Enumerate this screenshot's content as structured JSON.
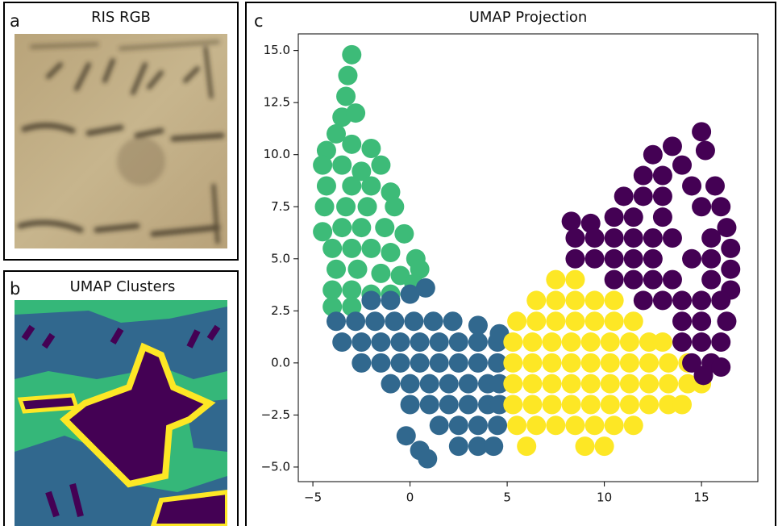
{
  "panels": [
    {
      "letter": "a",
      "title": "RIS RGB"
    },
    {
      "letter": "b",
      "title": "UMAP Clusters"
    }
  ],
  "chart_data": {
    "type": "scatter",
    "letter": "c",
    "title": "UMAP Projection",
    "xlim": [
      -5.75,
      17.9
    ],
    "ylim": [
      -5.7,
      15.8
    ],
    "xticks": [
      {
        "value": -5,
        "label": "−5"
      },
      0,
      5,
      10,
      15
    ],
    "yticks": [
      {
        "value": -5,
        "label": "−5.0"
      },
      {
        "value": -2.5,
        "label": "−2.5"
      },
      {
        "value": 0,
        "label": "0.0"
      },
      {
        "value": 2.5,
        "label": "2.5"
      },
      {
        "value": 5,
        "label": "5.0"
      },
      {
        "value": 7.5,
        "label": "7.5"
      },
      {
        "value": 10,
        "label": "10.0"
      },
      {
        "value": 12.5,
        "label": "12.5"
      },
      {
        "value": 15,
        "label": "15.0"
      }
    ],
    "series": [
      {
        "color": "#3dbb78",
        "x": [
          -3,
          -3.2,
          -3.3,
          -3.5,
          -2.8,
          -3.8,
          -4.3,
          -3,
          -2,
          -4.5,
          -3.5,
          -2.5,
          -1.5,
          -4.3,
          -3,
          -2,
          -1,
          -4.4,
          -3.3,
          -2.2,
          -0.8,
          -4.5,
          -3.5,
          -2.5,
          -1.3,
          -0.3,
          -4,
          -3,
          -2,
          -1,
          0.3,
          0.5,
          -3.8,
          -2.7,
          -1.5,
          -0.5,
          -4,
          -3,
          -2,
          -1,
          0.2,
          -4,
          -3
        ],
        "y": [
          14.8,
          13.8,
          12.8,
          11.8,
          12,
          11,
          10.2,
          10.5,
          10.3,
          9.5,
          9.5,
          9.2,
          9.5,
          8.5,
          8.5,
          8.5,
          8.2,
          7.5,
          7.5,
          7.5,
          7.5,
          6.3,
          6.5,
          6.5,
          6.5,
          6.2,
          5.5,
          5.5,
          5.5,
          5.3,
          5,
          4.5,
          4.5,
          4.5,
          4.3,
          4.2,
          3.5,
          3.5,
          3.3,
          3.3,
          3.8,
          2.7,
          2.7
        ]
      },
      {
        "color": "#31688e",
        "x": [
          -2,
          -1,
          0,
          0.8,
          -3.8,
          -2.8,
          -1.8,
          -0.8,
          0.2,
          1.2,
          2.2,
          -3.5,
          -2.5,
          -1.5,
          -0.5,
          0.5,
          1.5,
          2.5,
          3.5,
          4.5,
          -2.5,
          -1.5,
          -0.5,
          0.5,
          1.5,
          2.5,
          3.5,
          4.5,
          -1,
          0,
          1,
          2,
          3,
          4,
          4.6,
          0,
          1,
          2,
          3,
          4,
          4.6,
          1.5,
          2.5,
          3.5,
          4.5,
          2.5,
          3.5,
          4.3,
          3.5,
          4.6,
          -0.2,
          0.5,
          0.9
        ],
        "y": [
          3,
          3,
          3.3,
          3.6,
          2,
          2,
          2,
          2,
          2,
          2,
          2,
          1,
          1,
          1,
          1,
          1,
          1,
          1,
          1,
          1,
          0,
          0,
          0,
          0,
          0,
          0,
          0,
          0,
          -1,
          -1,
          -1,
          -1,
          -1,
          -1,
          -1,
          -2,
          -2,
          -2,
          -2,
          -2,
          -2,
          -3,
          -3,
          -3,
          -3,
          -4,
          -4,
          -4,
          1.8,
          1.4,
          -3.5,
          -4.2,
          -4.6
        ]
      },
      {
        "color": "#fde725",
        "x": [
          7.5,
          8.5,
          6.5,
          7.5,
          8.5,
          9.5,
          10.5,
          5.5,
          6.5,
          7.5,
          8.5,
          9.5,
          10.5,
          11.5,
          5.3,
          6.3,
          7.3,
          8.3,
          9.3,
          10.3,
          11.3,
          12.3,
          13,
          5.3,
          6.3,
          7.3,
          8.3,
          9.3,
          10.3,
          11.3,
          12.3,
          13.3,
          14.3,
          5.3,
          6.3,
          7.3,
          8.3,
          9.3,
          10.3,
          11.3,
          12.3,
          13.3,
          14.3,
          15,
          5.3,
          6.3,
          7.3,
          8.3,
          9.3,
          10.3,
          11.3,
          12.3,
          13.3,
          14,
          5.5,
          6.5,
          7.5,
          8.5,
          9.5,
          10.5,
          11.5,
          6,
          9,
          10
        ],
        "y": [
          4,
          4,
          3,
          3,
          3,
          3,
          3,
          2,
          2,
          2,
          2,
          2,
          2,
          2,
          1,
          1,
          1,
          1,
          1,
          1,
          1,
          1,
          1,
          0,
          0,
          0,
          0,
          0,
          0,
          0,
          0,
          0,
          0,
          -1,
          -1,
          -1,
          -1,
          -1,
          -1,
          -1,
          -1,
          -1,
          -1,
          -1,
          -2,
          -2,
          -2,
          -2,
          -2,
          -2,
          -2,
          -2,
          -2,
          -2,
          -3,
          -3,
          -3,
          -3,
          -3,
          -3,
          -3,
          -4,
          -4,
          -4
        ]
      },
      {
        "color": "#440154",
        "x": [
          15,
          15.2,
          13.5,
          12.5,
          14,
          12,
          13,
          14.5,
          15.7,
          11,
          12,
          13,
          15,
          16,
          8.3,
          9.3,
          10.5,
          11.5,
          13,
          16.3,
          8.5,
          9.5,
          10.5,
          11.5,
          12.5,
          13.5,
          15.5,
          16.5,
          8.5,
          9.5,
          10.5,
          11.5,
          12.5,
          14.5,
          15.5,
          16.5,
          10.5,
          11.5,
          12.5,
          13.5,
          15.5,
          16.5,
          12,
          13,
          14,
          15,
          16,
          14,
          15,
          16.3,
          14,
          15,
          16,
          14.5,
          15.5,
          16,
          15.1
        ],
        "y": [
          11.1,
          10.2,
          10.4,
          10,
          9.5,
          9,
          9,
          8.5,
          8.5,
          8,
          8,
          8,
          7.5,
          7.5,
          6.8,
          6.7,
          7,
          7,
          7,
          6.5,
          6,
          6,
          6,
          6,
          6,
          6,
          6,
          5.5,
          5,
          5,
          5,
          5,
          5,
          5,
          5,
          4.5,
          4,
          4,
          4,
          4,
          4,
          3.5,
          3,
          3,
          3,
          3,
          3,
          2,
          2,
          2,
          1,
          1,
          1,
          0,
          0,
          -0.2,
          -0.6
        ]
      }
    ]
  }
}
